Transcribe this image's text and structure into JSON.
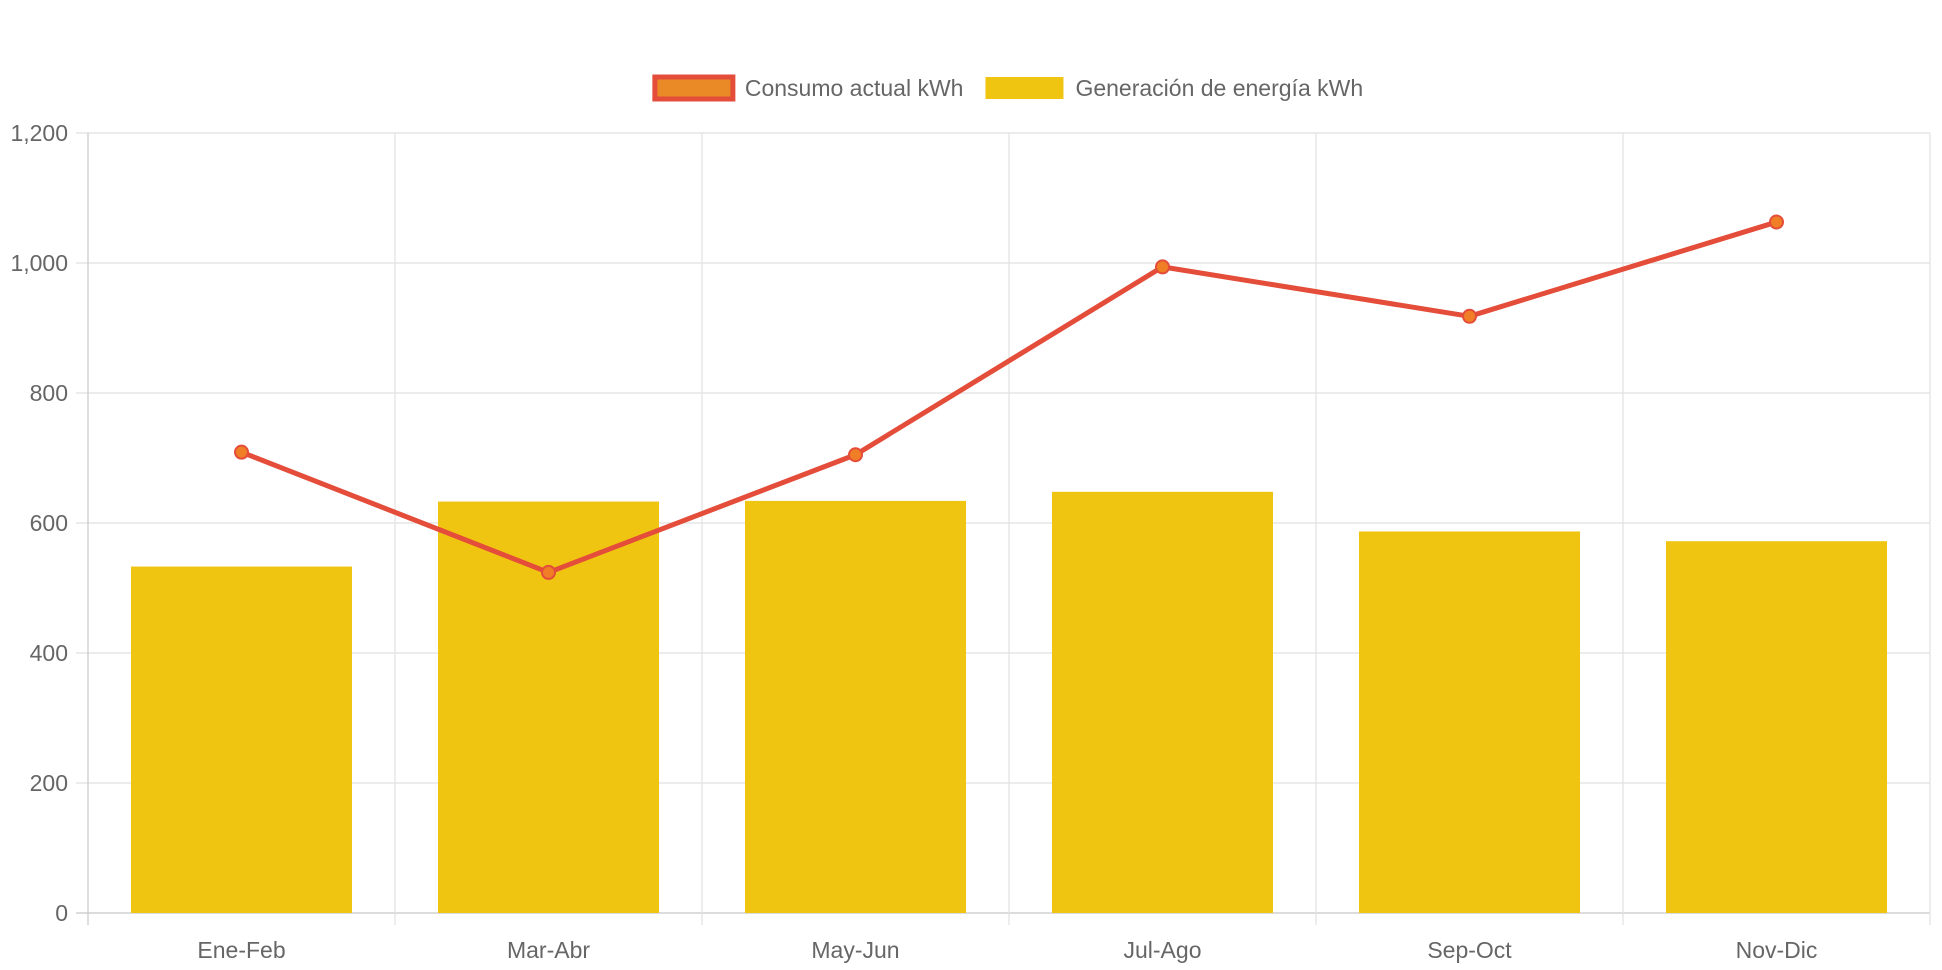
{
  "chart_data": {
    "type": "bar",
    "title": "",
    "xlabel": "",
    "ylabel": "",
    "categories": [
      "Ene-Feb",
      "Mar-Abr",
      "May-Jun",
      "Jul-Ago",
      "Sep-Oct",
      "Nov-Dic"
    ],
    "ylim": [
      0,
      1200
    ],
    "yticks": [
      0,
      200,
      400,
      600,
      800,
      1000,
      1200
    ],
    "ytick_labels": [
      "0",
      "200",
      "400",
      "600",
      "800",
      "1,000",
      "1,200"
    ],
    "grid": true,
    "legend_position": "top-center",
    "series": [
      {
        "name": "Consumo actual kWh",
        "type": "line",
        "values": [
          709,
          524,
          705,
          994,
          918,
          1063
        ],
        "line_color": "#e44d3a",
        "point_color": "#f07e26",
        "legend_fill": "#e98a26"
      },
      {
        "name": "Generación de energía kWh",
        "type": "bar",
        "values": [
          533,
          633,
          634,
          648,
          587,
          572
        ],
        "color": "#f0c511"
      }
    ]
  }
}
